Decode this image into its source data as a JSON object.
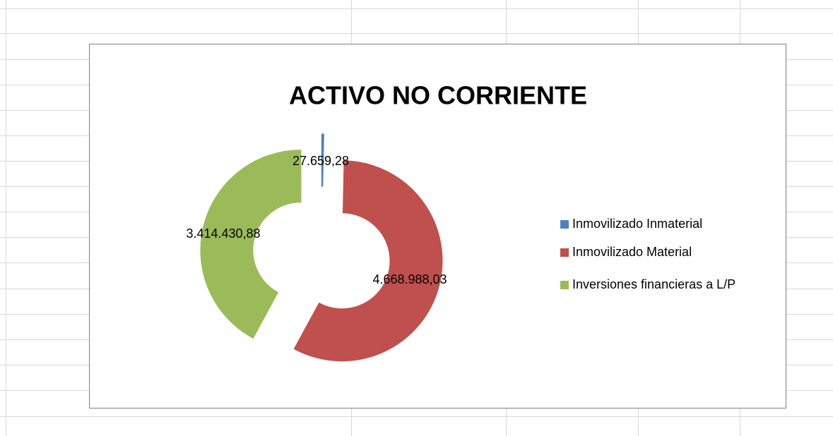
{
  "chart_data": {
    "type": "donut",
    "title": "ACTIVO NO CORRIENTE",
    "categories": [
      "Inmovilizado Inmaterial",
      "Inmovilizado Material",
      "Inversiones financieras a L/P"
    ],
    "values": [
      27659.28,
      4668988.03,
      3414430.88
    ],
    "value_labels": [
      "27.659,28",
      "4.668.988,03",
      "3.414.430,88"
    ],
    "colors": [
      "#4f81bd",
      "#c0504d",
      "#9bbb59"
    ],
    "legend": "right"
  }
}
